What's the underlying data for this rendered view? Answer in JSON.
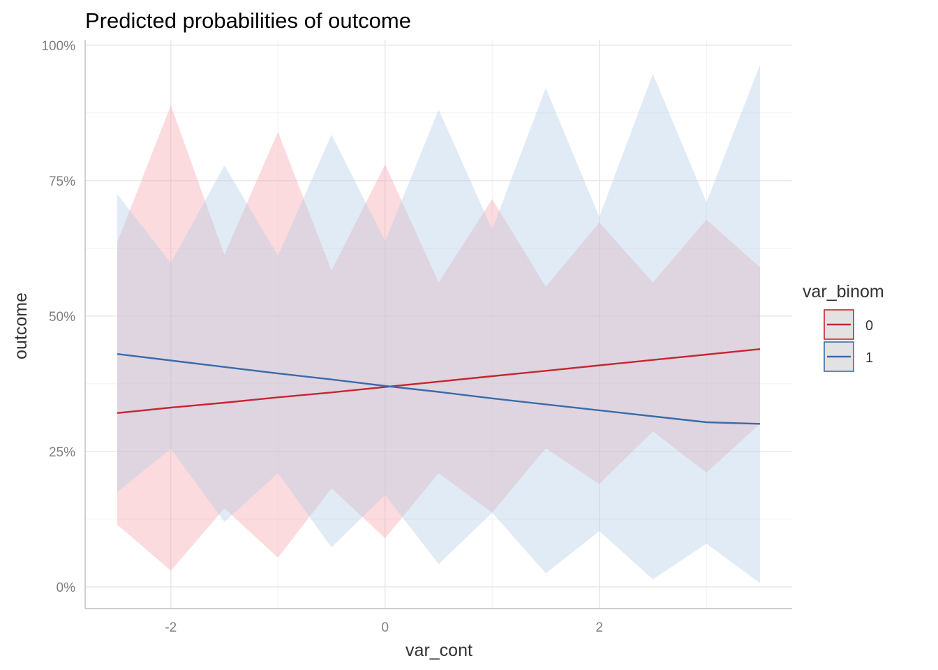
{
  "chart_data": {
    "type": "line",
    "title": "Predicted probabilities of outcome",
    "xlabel": "var_cont",
    "ylabel": "outcome",
    "xlim": [
      -2.8,
      3.8
    ],
    "ylim": [
      -0.04,
      1.01
    ],
    "x_ticks": [
      -2,
      0,
      2
    ],
    "x_tick_labels": [
      "-2",
      "0",
      "2"
    ],
    "y_ticks": [
      0,
      0.25,
      0.5,
      0.75,
      1.0
    ],
    "y_tick_labels": [
      "0%",
      "25%",
      "50%",
      "75%",
      "100%"
    ],
    "grid": true,
    "legend": {
      "title": "var_binom",
      "position": "right"
    },
    "x": [
      -2.5,
      -2,
      -1.5,
      -1,
      -0.5,
      0,
      0.5,
      1,
      1.5,
      2,
      2.5,
      3,
      3.5
    ],
    "series": [
      {
        "name": "0",
        "color": "#c9252f",
        "fill_color": "#f4a6ad",
        "values": [
          0.321,
          0.331,
          0.34,
          0.35,
          0.359,
          0.369,
          0.379,
          0.389,
          0.399,
          0.409,
          0.419,
          0.429,
          0.439
        ],
        "lower": [
          0.115,
          0.03,
          0.145,
          0.054,
          0.182,
          0.09,
          0.21,
          0.137,
          0.256,
          0.19,
          0.287,
          0.211,
          0.301
        ],
        "upper": [
          0.636,
          0.889,
          0.613,
          0.84,
          0.584,
          0.78,
          0.562,
          0.716,
          0.554,
          0.673,
          0.562,
          0.678,
          0.59
        ]
      },
      {
        "name": "1",
        "color": "#3b6aaa",
        "fill_color": "#b5cde6",
        "values": [
          0.43,
          0.418,
          0.406,
          0.394,
          0.383,
          0.371,
          0.36,
          0.348,
          0.337,
          0.326,
          0.315,
          0.304,
          0.301
        ],
        "lower": [
          0.175,
          0.255,
          0.12,
          0.21,
          0.073,
          0.17,
          0.042,
          0.137,
          0.025,
          0.103,
          0.014,
          0.08,
          0.007
        ],
        "upper": [
          0.725,
          0.598,
          0.778,
          0.611,
          0.835,
          0.638,
          0.881,
          0.66,
          0.921,
          0.683,
          0.947,
          0.71,
          0.964
        ]
      }
    ]
  }
}
